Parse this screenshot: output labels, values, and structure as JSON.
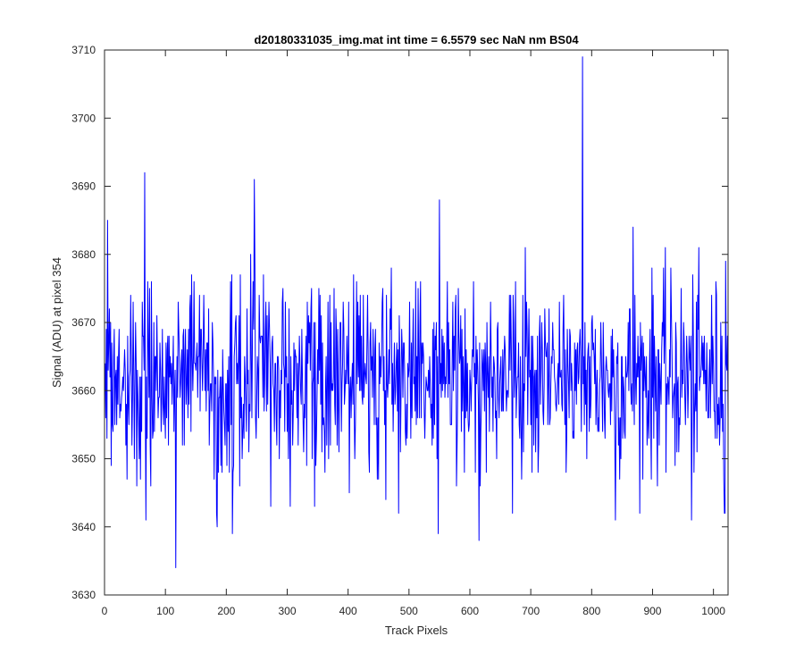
{
  "chart_data": {
    "type": "line",
    "title": "d20180331035_img.mat int time = 6.5579 sec  NaN nm BS04",
    "xlabel": "Track Pixels",
    "ylabel": "Signal (ADU) at pixel 354",
    "xlim": [
      0,
      1024
    ],
    "ylim": [
      3630,
      3710
    ],
    "xticks": [
      0,
      100,
      200,
      300,
      400,
      500,
      600,
      700,
      800,
      900,
      1000
    ],
    "yticks": [
      3630,
      3640,
      3650,
      3660,
      3670,
      3680,
      3690,
      3700,
      3710
    ],
    "grid": false,
    "legend": "none",
    "series": [
      {
        "color": "#0000ff",
        "x_start": 1,
        "x_step": 1,
        "baseline": 3662,
        "noise_sd": 7,
        "n_points": 1024,
        "notable_points": [
          {
            "x": 5,
            "y": 3685
          },
          {
            "x": 11,
            "y": 3649
          },
          {
            "x": 66,
            "y": 3692
          },
          {
            "x": 68,
            "y": 3641
          },
          {
            "x": 117,
            "y": 3634
          },
          {
            "x": 185,
            "y": 3640
          },
          {
            "x": 210,
            "y": 3639
          },
          {
            "x": 246,
            "y": 3691
          },
          {
            "x": 305,
            "y": 3643
          },
          {
            "x": 345,
            "y": 3643
          },
          {
            "x": 483,
            "y": 3642
          },
          {
            "x": 548,
            "y": 3639
          },
          {
            "x": 550,
            "y": 3688
          },
          {
            "x": 615,
            "y": 3638
          },
          {
            "x": 670,
            "y": 3642
          },
          {
            "x": 785,
            "y": 3709
          },
          {
            "x": 839,
            "y": 3641
          },
          {
            "x": 868,
            "y": 3684
          },
          {
            "x": 964,
            "y": 3641
          },
          {
            "x": 1018,
            "y": 3642
          },
          {
            "x": 1020,
            "y": 3679
          }
        ]
      }
    ]
  }
}
